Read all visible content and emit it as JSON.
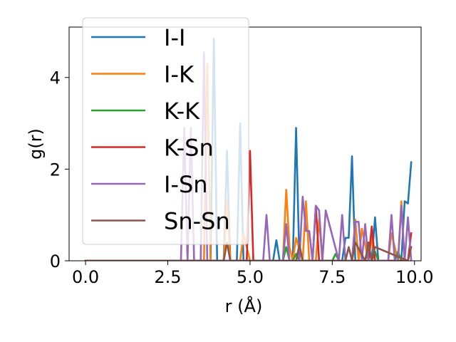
{
  "chart_data": {
    "type": "line",
    "title": "",
    "xlabel": "r (Å)",
    "ylabel": "g(r)",
    "xlim": [
      -0.5,
      10.2
    ],
    "ylim": [
      0,
      5.1
    ],
    "xticks": [
      0.0,
      2.5,
      5.0,
      7.5,
      10.0
    ],
    "xtick_labels": [
      "0.0",
      "2.5",
      "5.0",
      "7.5",
      "10.0"
    ],
    "yticks": [
      0,
      2,
      4
    ],
    "ytick_labels": [
      "0",
      "2",
      "4"
    ],
    "legend_position": "upper-left",
    "series": [
      {
        "name": "I-I",
        "color": "#1f77b4",
        "x": [
          0.0,
          3.8,
          3.9,
          4.0,
          4.2,
          4.3,
          4.4,
          4.6,
          4.7,
          4.8,
          5.7,
          5.8,
          5.9,
          6.3,
          6.4,
          6.5,
          7.8,
          7.9,
          8.0,
          8.1,
          8.2,
          8.7,
          8.8,
          8.9,
          9.6,
          9.7,
          9.8,
          9.9
        ],
        "y": [
          0.0,
          0.0,
          4.85,
          0.0,
          0.0,
          2.4,
          0.0,
          0.0,
          3.0,
          0.0,
          0.0,
          0.45,
          0.0,
          0.0,
          2.9,
          0.0,
          0.0,
          0.5,
          0.5,
          2.28,
          0.0,
          0.0,
          0.95,
          0.0,
          0.0,
          1.3,
          1.25,
          2.15
        ]
      },
      {
        "name": "I-K",
        "color": "#ff7f0e",
        "x": [
          0.0,
          3.6,
          3.7,
          3.8,
          4.2,
          4.3,
          4.4,
          4.7,
          4.8,
          5.0,
          6.0,
          6.1,
          6.2,
          6.3,
          6.4,
          6.6,
          6.7,
          6.8,
          7.0,
          7.1,
          7.2,
          8.1,
          8.2,
          8.3,
          8.4,
          8.6,
          8.7,
          8.8,
          9.2,
          9.3,
          9.4,
          9.5,
          9.6,
          9.7
        ],
        "y": [
          0.0,
          0.0,
          4.3,
          0.0,
          0.0,
          1.3,
          0.0,
          0.0,
          0.6,
          0.0,
          0.0,
          1.55,
          0.3,
          0.0,
          0.5,
          0.0,
          1.3,
          0.0,
          0.0,
          0.9,
          0.0,
          0.0,
          0.9,
          0.0,
          0.7,
          0.0,
          0.5,
          0.0,
          0.0,
          0.6,
          0.3,
          0.0,
          1.3,
          0.0
        ]
      },
      {
        "name": "K-K",
        "color": "#2ca02c",
        "x": [
          0.0,
          6.0,
          6.1,
          6.2,
          6.3,
          6.4,
          6.5,
          7.5,
          7.6,
          7.7,
          8.5,
          8.6,
          8.7,
          8.8,
          8.9,
          9.4,
          9.5,
          9.6
        ],
        "y": [
          0.0,
          0.0,
          0.3,
          0.0,
          0.0,
          0.15,
          0.0,
          0.0,
          0.15,
          0.0,
          0.0,
          0.25,
          0.0,
          0.2,
          0.0,
          0.0,
          0.2,
          0.0
        ]
      },
      {
        "name": "K-Sn",
        "color": "#d62728",
        "x": [
          0.0,
          4.9,
          5.0,
          5.1,
          6.9,
          7.0,
          7.1,
          7.2,
          8.6,
          8.7,
          8.8,
          8.9,
          9.8,
          9.9
        ],
        "y": [
          0.0,
          0.0,
          2.4,
          0.0,
          0.0,
          1.2,
          0.0,
          0.0,
          0.0,
          0.75,
          0.0,
          0.0,
          0.0,
          0.6
        ]
      },
      {
        "name": "I-Sn",
        "color": "#9467bd",
        "x": [
          0.0,
          2.9,
          3.0,
          3.1,
          3.2,
          3.3,
          3.4,
          3.5,
          3.6,
          3.7,
          5.4,
          5.5,
          5.6,
          6.0,
          6.1,
          6.2,
          6.3,
          6.4,
          6.5,
          6.6,
          6.7,
          6.8,
          6.9,
          7.0,
          7.1,
          7.2,
          7.3,
          7.7,
          7.8,
          7.9,
          8.1,
          8.2,
          8.3,
          8.4,
          8.5,
          8.6,
          8.7,
          9.2,
          9.3,
          9.4,
          9.5,
          9.6,
          9.7,
          9.8,
          9.9
        ],
        "y": [
          0.0,
          0.0,
          2.9,
          0.0,
          2.9,
          0.0,
          0.0,
          0.0,
          4.55,
          0.0,
          0.0,
          1.0,
          0.0,
          0.0,
          0.8,
          0.0,
          0.0,
          0.0,
          0.0,
          1.4,
          0.65,
          0.65,
          0.0,
          1.2,
          1.1,
          0.0,
          1.1,
          0.0,
          1.0,
          0.0,
          0.0,
          0.85,
          0.85,
          0.0,
          0.8,
          0.0,
          0.0,
          0.0,
          1.0,
          0.0,
          0.0,
          1.2,
          0.0,
          0.95,
          0.0
        ]
      },
      {
        "name": "Sn-Sn",
        "color": "#8c564b",
        "x": [
          0.0,
          4.2,
          4.3,
          4.4,
          6.4,
          6.5,
          6.6,
          7.9,
          8.0,
          8.1,
          8.2,
          8.5,
          8.6,
          8.7,
          8.8,
          9.8,
          9.9
        ],
        "y": [
          0.0,
          0.0,
          0.4,
          0.0,
          0.0,
          0.35,
          0.0,
          0.0,
          0.3,
          0.0,
          0.4,
          0.0,
          0.4,
          0.0,
          0.3,
          0.0,
          0.3
        ]
      }
    ]
  }
}
